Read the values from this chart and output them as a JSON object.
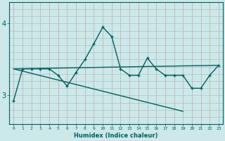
{
  "xlabel": "Humidex (Indice chaleur)",
  "bg_color": "#cde8e8",
  "line_color": "#006060",
  "vert_grid_color": "#c8b0b0",
  "horiz_grid_color": "#a0c8c8",
  "x_ticks": [
    0,
    1,
    2,
    3,
    4,
    5,
    6,
    7,
    8,
    9,
    10,
    11,
    12,
    13,
    14,
    15,
    16,
    17,
    18,
    19,
    20,
    21,
    22,
    23
  ],
  "y_ticks": [
    3,
    4
  ],
  "ylim": [
    2.6,
    4.3
  ],
  "xlim": [
    -0.5,
    23.5
  ],
  "line1_x": [
    0,
    1,
    2,
    3,
    4,
    5,
    6,
    7,
    8,
    9,
    10,
    11,
    12,
    13,
    14,
    15,
    16,
    17,
    18,
    19,
    20,
    21,
    22,
    23
  ],
  "line1_y": [
    2.93,
    3.37,
    3.37,
    3.37,
    3.37,
    3.28,
    3.13,
    3.32,
    3.5,
    3.72,
    3.95,
    3.82,
    3.37,
    3.28,
    3.28,
    3.52,
    3.37,
    3.28,
    3.28,
    3.28,
    3.1,
    3.1,
    3.28,
    3.42
  ],
  "line2_x": [
    0,
    23
  ],
  "line2_y": [
    3.37,
    3.42
  ],
  "line3_x": [
    0,
    19
  ],
  "line3_y": [
    3.37,
    2.78
  ]
}
